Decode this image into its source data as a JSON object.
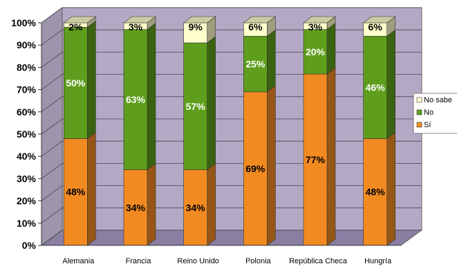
{
  "chart_data": {
    "type": "bar",
    "stacked": true,
    "percent": true,
    "three_d": true,
    "categories": [
      "Alemania",
      "Francia",
      "Reino Unido",
      "Polonia",
      "República Checa",
      "Hungría"
    ],
    "series": [
      {
        "name": "Sí",
        "color": "#f28a22",
        "label_color": "#000000",
        "values": [
          48,
          34,
          34,
          69,
          77,
          48
        ],
        "labels": [
          "48%",
          "34%",
          "34%",
          "69%",
          "77%",
          "48%"
        ]
      },
      {
        "name": "No",
        "color": "#5e9e1c",
        "label_color": "#ffffff",
        "values": [
          50,
          63,
          57,
          25,
          20,
          46
        ],
        "labels": [
          "50%",
          "63%",
          "57%",
          "25%",
          "20%",
          "46%"
        ]
      },
      {
        "name": "No sabe",
        "color": "#ffffcc",
        "label_color": "#000000",
        "values": [
          2,
          3,
          9,
          6,
          3,
          6
        ],
        "labels": [
          "2%",
          "3%",
          "9%",
          "6%",
          "3%",
          "6%"
        ]
      }
    ],
    "y_ticks": [
      "0%",
      "10%",
      "20%",
      "30%",
      "40%",
      "50%",
      "60%",
      "70%",
      "80%",
      "90%",
      "100%"
    ],
    "ylim": [
      0,
      100
    ],
    "grid": true,
    "legend": {
      "position": "right",
      "items": [
        "No sabe",
        "No",
        "Sí"
      ]
    },
    "wall_color": "#b3a9c5",
    "floor_color": "#8b7ea3"
  }
}
